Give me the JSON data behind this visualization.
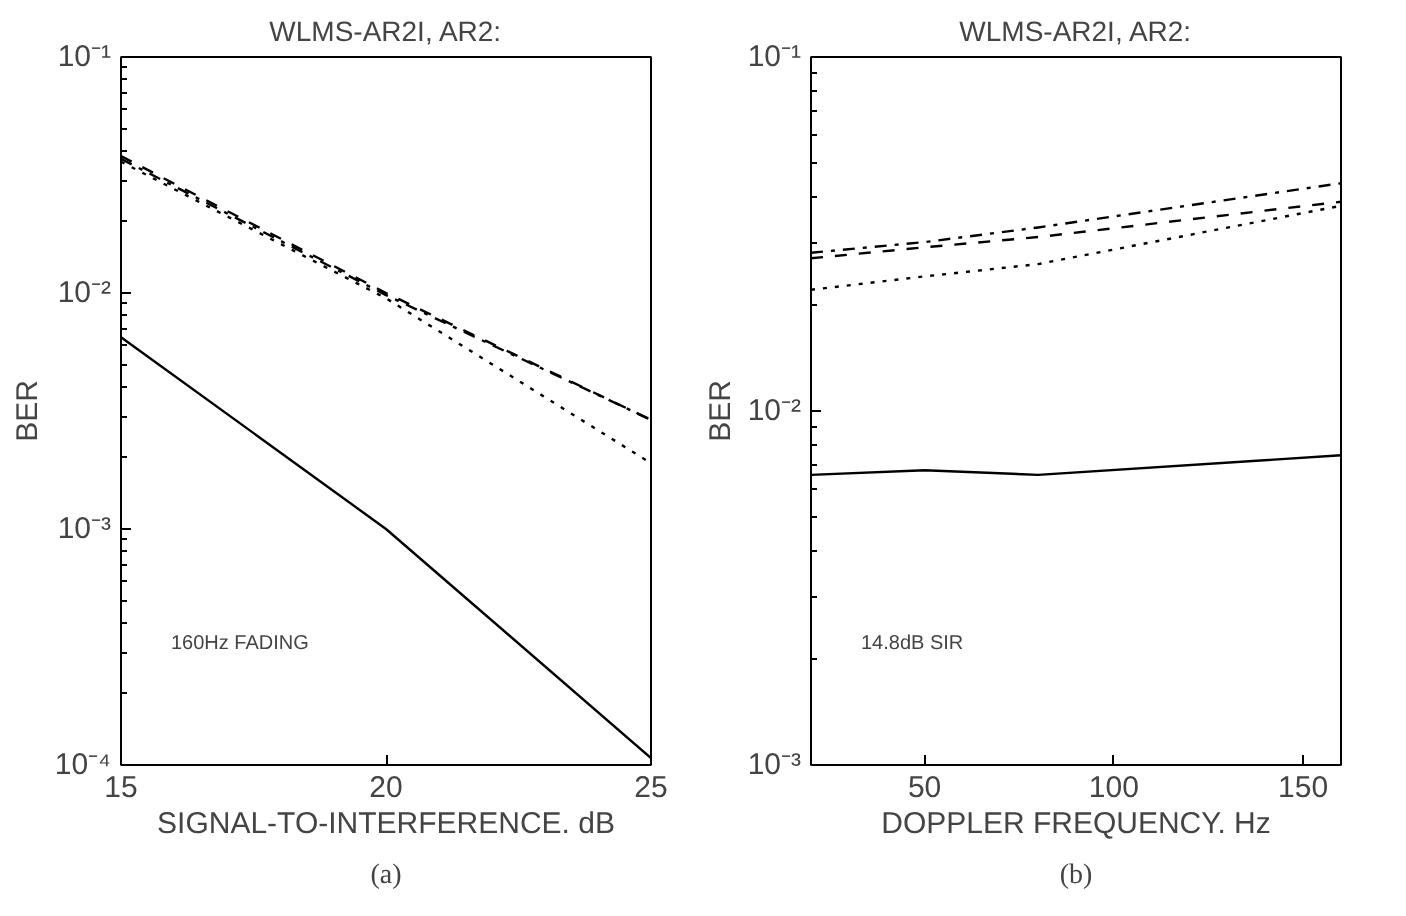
{
  "chart_data": [
    {
      "type": "line",
      "title": "WLMS-AR2I, AR2:",
      "xlabel": "SIGNAL-TO-INTERFERENCE. dB",
      "ylabel": "BER",
      "log": "y",
      "grid": false,
      "x": [
        15,
        20,
        25
      ],
      "xlim": [
        15,
        25
      ],
      "xticks": [
        15,
        20,
        25
      ],
      "ylim": [
        0.0001,
        0.1
      ],
      "yticks": [
        {
          "value": 0.0001,
          "label": "10⁻⁴"
        },
        {
          "value": 0.001,
          "label": "10⁻³"
        },
        {
          "value": 0.01,
          "label": "10⁻²"
        },
        {
          "value": 0.1,
          "label": "10⁻¹"
        }
      ],
      "series": [
        {
          "color": "#000000",
          "line_style": "solid",
          "values": [
            0.0065,
            0.001,
            0.000107
          ]
        },
        {
          "color": "#000000",
          "line_style": "dashed",
          "values": [
            0.038,
            0.01,
            0.0029
          ]
        },
        {
          "color": "#000000",
          "line_style": "dashdot",
          "values": [
            0.037,
            0.0098,
            0.0029
          ]
        },
        {
          "color": "#000000",
          "line_style": "dotted",
          "values": [
            0.036,
            0.0095,
            0.0019
          ]
        }
      ],
      "annotations": [
        "160Hz FADING",
        "(a)"
      ]
    },
    {
      "type": "line",
      "title": "WLMS-AR2I, AR2:",
      "xlabel": "DOPPLER FREQUENCY. Hz",
      "ylabel": "BER",
      "log": "y",
      "grid": false,
      "x": [
        20,
        50,
        80,
        160
      ],
      "xlim": [
        20,
        160
      ],
      "xticks": [
        50,
        100,
        150
      ],
      "ylim": [
        0.001,
        0.1
      ],
      "yticks": [
        {
          "value": 0.001,
          "label": "10⁻³"
        },
        {
          "value": 0.01,
          "label": "10⁻²"
        },
        {
          "value": 0.1,
          "label": "10⁻¹"
        }
      ],
      "series": [
        {
          "color": "#000000",
          "line_style": "solid",
          "values": [
            0.0066,
            0.0068,
            0.0066,
            0.0075
          ]
        },
        {
          "color": "#000000",
          "line_style": "dashed",
          "values": [
            0.027,
            0.029,
            0.031,
            0.039
          ]
        },
        {
          "color": "#000000",
          "line_style": "dashdot",
          "values": [
            0.028,
            0.03,
            0.033,
            0.044
          ]
        },
        {
          "color": "#000000",
          "line_style": "dotted",
          "values": [
            0.022,
            0.024,
            0.026,
            0.038
          ]
        }
      ],
      "annotations": [
        "14.8dB SIR",
        "(b)"
      ]
    }
  ]
}
